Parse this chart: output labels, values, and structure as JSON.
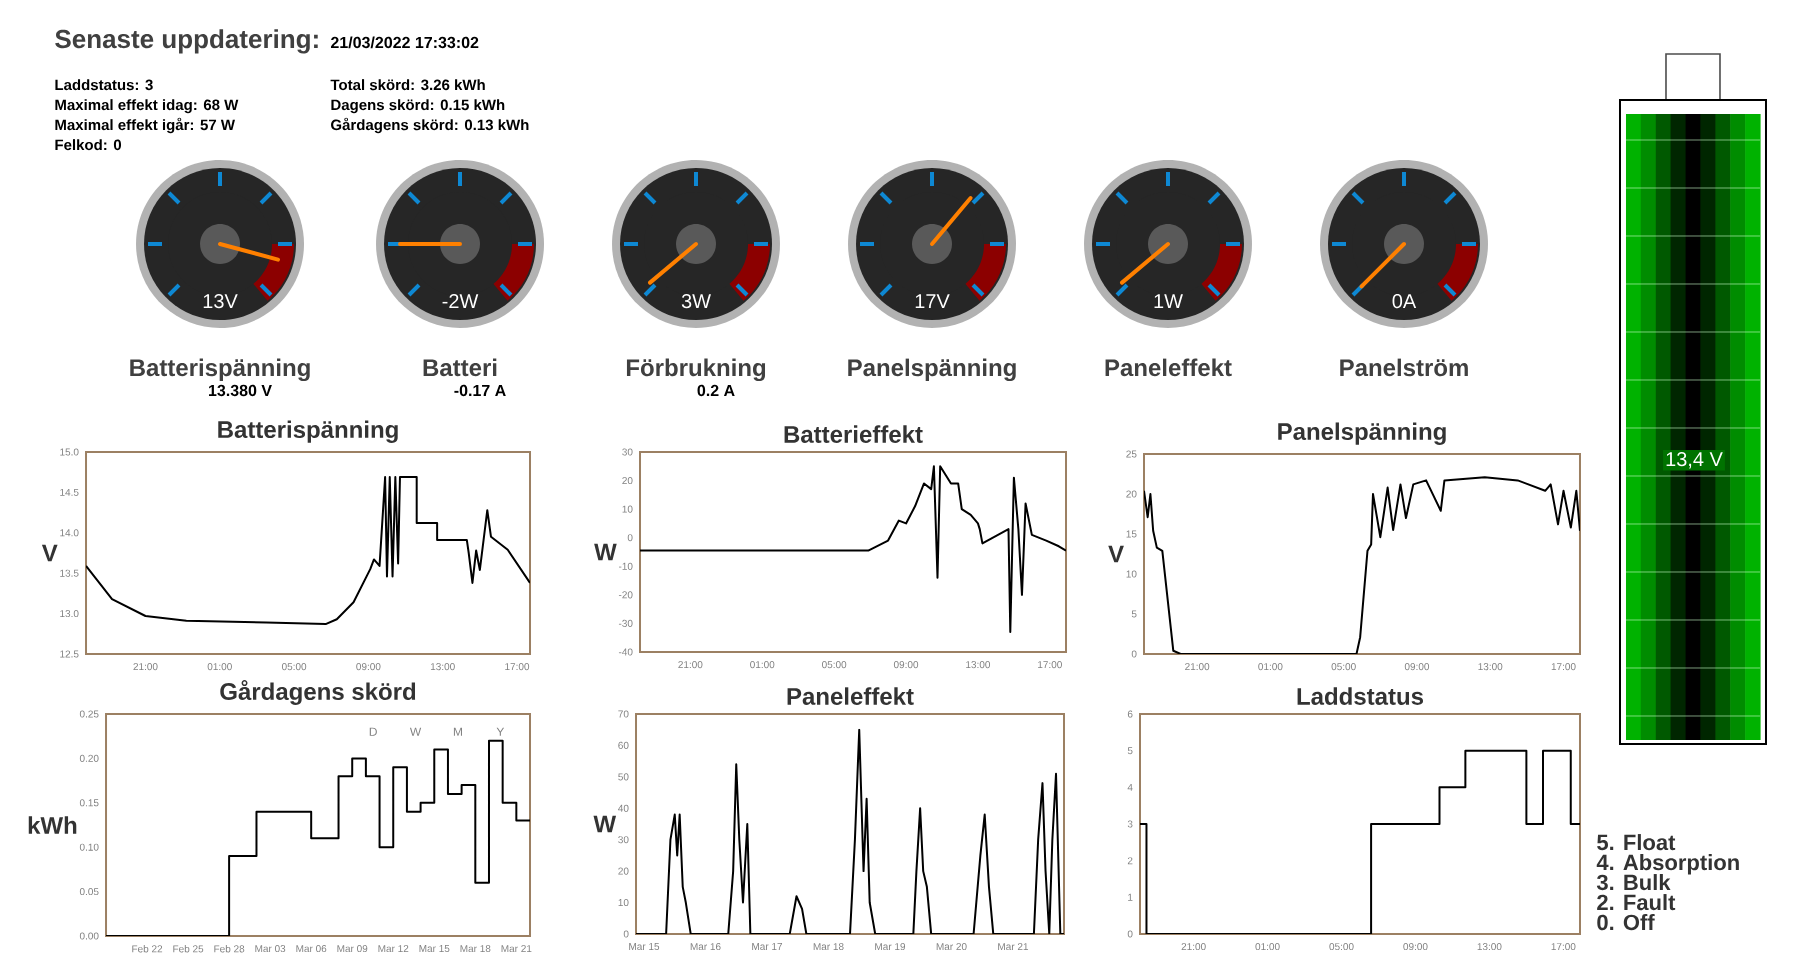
{
  "chart_data": [
    {
      "type": "other",
      "title": "Senaste uppdatering:",
      "subtitle": "21/03/2022 17:33:02",
      "annotations": [
        "Laddstatus: 3",
        "Maximal effekt idag: 68 W",
        "Maximal effekt igår: 57 W",
        "Felkod: 0",
        "Total skörd: 3.26 kWh",
        "Dagens skörd: 0.15 kWh",
        "Gårdagens skörd: 0.13 kWh"
      ]
    },
    {
      "type": "other",
      "title": "Batterispänning",
      "annotations": [
        "13V",
        "13.380 V"
      ]
    },
    {
      "type": "other",
      "title": "Batteri",
      "annotations": [
        "-2W",
        "-0.17 A"
      ]
    },
    {
      "type": "other",
      "title": "Förbrukning",
      "annotations": [
        "3W",
        "0.2 A"
      ]
    },
    {
      "type": "other",
      "title": "Panelspänning",
      "annotations": [
        "17V"
      ]
    },
    {
      "type": "other",
      "title": "Paneleffekt",
      "annotations": [
        "1W"
      ]
    },
    {
      "type": "other",
      "title": "Panelström",
      "annotations": [
        "0A"
      ]
    },
    {
      "type": "other",
      "annotations": [
        "13,4 V"
      ]
    },
    {
      "type": "line",
      "title": "Batterispänning",
      "ylabel": "V",
      "color": "#000000",
      "x": [
        "2022-03-20T17:48",
        "2022-03-20T19:12",
        "2022-03-20T21:00",
        "2022-03-20T23:12",
        "2022-03-21T03:30",
        "2022-03-21T06:42",
        "2022-03-21T07:18",
        "2022-03-21T08:12",
        "2022-03-21T09:06",
        "2022-03-21T09:18",
        "2022-03-21T09:36",
        "2022-03-21T09:54",
        "2022-03-21T10:00",
        "2022-03-21T10:09",
        "2022-03-21T10:18",
        "2022-03-21T10:27",
        "2022-03-21T10:36",
        "2022-03-21T10:42",
        "2022-03-21T11:36",
        "2022-03-21T11:36",
        "2022-03-21T12:42",
        "2022-03-21T12:42",
        "2022-03-21T14:18",
        "2022-03-21T14:24",
        "2022-03-21T14:36",
        "2022-03-21T14:48",
        "2022-03-21T15:00",
        "2022-03-21T15:24",
        "2022-03-21T15:36",
        "2022-03-21T16:30",
        "2022-03-21T17:42"
      ],
      "values": [
        13.59,
        13.18,
        12.97,
        12.91,
        12.89,
        12.87,
        12.93,
        13.14,
        13.55,
        13.67,
        13.59,
        14.69,
        13.46,
        14.69,
        13.46,
        14.69,
        13.62,
        14.69,
        14.69,
        14.12,
        14.12,
        13.91,
        13.91,
        13.75,
        13.38,
        13.78,
        13.54,
        14.28,
        13.95,
        13.79,
        13.38
      ],
      "xlim": [
        "2022-03-20T17:48",
        "2022-03-21T17:42"
      ],
      "ylim": [
        12.5,
        15.0
      ],
      "xticks": [
        {
          "value": "2022-03-20T21:00",
          "label": "21:00"
        },
        {
          "value": "2022-03-21T01:00",
          "label": "01:00"
        },
        {
          "value": "2022-03-21T05:00",
          "label": "05:00"
        },
        {
          "value": "2022-03-21T09:00",
          "label": "09:00"
        },
        {
          "value": "2022-03-21T13:00",
          "label": "13:00"
        },
        {
          "value": "2022-03-21T17:00",
          "label": "17:00"
        }
      ],
      "yticks": [
        {
          "value": 12.5,
          "label": "12.5"
        },
        {
          "value": 13.0,
          "label": "13.0"
        },
        {
          "value": 13.5,
          "label": "13.5"
        },
        {
          "value": 14.0,
          "label": "14.0"
        },
        {
          "value": 14.5,
          "label": "14.5"
        },
        {
          "value": 15.0,
          "label": "15.0"
        }
      ]
    },
    {
      "type": "line",
      "title": "Batterieffekt",
      "ylabel": "W",
      "color": "#000000",
      "x": [
        "2022-03-20T18:12",
        "2022-03-21T06:54",
        "2022-03-21T08:00",
        "2022-03-21T08:36",
        "2022-03-21T09:00",
        "2022-03-21T09:30",
        "2022-03-21T10:00",
        "2022-03-21T10:24",
        "2022-03-21T10:33",
        "2022-03-21T10:45",
        "2022-03-21T10:54",
        "2022-03-21T11:06",
        "2022-03-21T11:30",
        "2022-03-21T11:54",
        "2022-03-21T12:06",
        "2022-03-21T12:36",
        "2022-03-21T13:00",
        "2022-03-21T13:06",
        "2022-03-21T13:15",
        "2022-03-21T14:42",
        "2022-03-21T14:48",
        "2022-03-21T15:00",
        "2022-03-21T15:15",
        "2022-03-21T15:27",
        "2022-03-21T15:39",
        "2022-03-21T16:00",
        "2022-03-21T16:48",
        "2022-03-21T17:30",
        "2022-03-21T17:54"
      ],
      "values": [
        -4.5,
        -4.5,
        -1.0,
        6,
        5,
        11,
        19,
        17,
        25,
        -14,
        25,
        23,
        19,
        19,
        10,
        8,
        5,
        3,
        -2,
        3,
        -33,
        21,
        3,
        -20,
        12,
        1,
        -1,
        -3,
        -4.5
      ],
      "xlim": [
        "2022-03-20T18:12",
        "2022-03-21T17:54"
      ],
      "ylim": [
        -40,
        30
      ],
      "xticks": [
        {
          "value": "2022-03-20T21:00",
          "label": "21:00"
        },
        {
          "value": "2022-03-21T01:00",
          "label": "01:00"
        },
        {
          "value": "2022-03-21T05:00",
          "label": "05:00"
        },
        {
          "value": "2022-03-21T09:00",
          "label": "09:00"
        },
        {
          "value": "2022-03-21T13:00",
          "label": "13:00"
        },
        {
          "value": "2022-03-21T17:00",
          "label": "17:00"
        }
      ],
      "yticks": [
        -40,
        -30,
        -20,
        -10,
        0,
        10,
        20,
        30
      ]
    },
    {
      "type": "line",
      "title": "Panelspänning",
      "ylabel": "V",
      "color": "#000000",
      "x": [
        "2022-03-20T18:06",
        "2022-03-20T18:18",
        "2022-03-20T18:27",
        "2022-03-20T18:36",
        "2022-03-20T18:48",
        "2022-03-20T19:06",
        "2022-03-20T19:42",
        "2022-03-20T20:06",
        "2022-03-21T05:42",
        "2022-03-21T05:54",
        "2022-03-21T06:18",
        "2022-03-21T06:30",
        "2022-03-21T06:36",
        "2022-03-21T07:00",
        "2022-03-21T07:24",
        "2022-03-21T07:42",
        "2022-03-21T08:06",
        "2022-03-21T08:24",
        "2022-03-21T08:48",
        "2022-03-21T09:30",
        "2022-03-21T10:18",
        "2022-03-21T10:30",
        "2022-03-21T12:42",
        "2022-03-21T14:30",
        "2022-03-21T16:00",
        "2022-03-21T16:18",
        "2022-03-21T16:42",
        "2022-03-21T17:00",
        "2022-03-21T17:24",
        "2022-03-21T17:42",
        "2022-03-21T17:54"
      ],
      "values": [
        20.4,
        17.1,
        20,
        15.4,
        13.3,
        12.9,
        0.4,
        0,
        0,
        2.1,
        12.9,
        13.7,
        20,
        14.6,
        20.8,
        15.5,
        21.2,
        17,
        21.2,
        21.7,
        17.9,
        21.7,
        22.1,
        21.7,
        20.4,
        21.2,
        16.2,
        20.4,
        15.8,
        20.4,
        15.4
      ],
      "xlim": [
        "2022-03-20T18:06",
        "2022-03-21T17:54"
      ],
      "ylim": [
        0,
        25
      ],
      "xticks": [
        {
          "value": "2022-03-20T21:00",
          "label": "21:00"
        },
        {
          "value": "2022-03-21T01:00",
          "label": "01:00"
        },
        {
          "value": "2022-03-21T05:00",
          "label": "05:00"
        },
        {
          "value": "2022-03-21T09:00",
          "label": "09:00"
        },
        {
          "value": "2022-03-21T13:00",
          "label": "13:00"
        },
        {
          "value": "2022-03-21T17:00",
          "label": "17:00"
        }
      ],
      "yticks": [
        0,
        5,
        10,
        15,
        20,
        25
      ]
    },
    {
      "type": "step",
      "title": "Gårdagens skörd",
      "ylabel": "kWh",
      "color": "#000000",
      "x": [
        "2022-02-19",
        "2022-02-28",
        "2022-03-02",
        "2022-03-06",
        "2022-03-08",
        "2022-03-09",
        "2022-03-10",
        "2022-03-11",
        "2022-03-12",
        "2022-03-13",
        "2022-03-14",
        "2022-03-15",
        "2022-03-16",
        "2022-03-17",
        "2022-03-18",
        "2022-03-19",
        "2022-03-20",
        "2022-03-21",
        "2022-03-22"
      ],
      "values": [
        0,
        0.09,
        0.14,
        0.11,
        0.18,
        0.2,
        0.18,
        0.1,
        0.19,
        0.14,
        0.15,
        0.21,
        0.16,
        0.17,
        0.06,
        0.22,
        0.15,
        0.13,
        0.13
      ],
      "xlim": [
        "2022-02-19",
        "2022-03-22"
      ],
      "ylim": [
        0,
        0.25
      ],
      "xticks": [
        {
          "value": "2022-02-22",
          "label": "Feb 22"
        },
        {
          "value": "2022-02-25",
          "label": "Feb 25"
        },
        {
          "value": "2022-02-28",
          "label": "Feb 28"
        },
        {
          "value": "2022-03-03",
          "label": "Mar 03"
        },
        {
          "value": "2022-03-06",
          "label": "Mar 06"
        },
        {
          "value": "2022-03-09",
          "label": "Mar 09"
        },
        {
          "value": "2022-03-12",
          "label": "Mar 12"
        },
        {
          "value": "2022-03-15",
          "label": "Mar 15"
        },
        {
          "value": "2022-03-18",
          "label": "Mar 18"
        },
        {
          "value": "2022-03-21",
          "label": "Mar 21"
        }
      ],
      "yticks": [
        {
          "value": 0,
          "label": "0.00"
        },
        {
          "value": 0.05,
          "label": "0.05"
        },
        {
          "value": 0.1,
          "label": "0.10"
        },
        {
          "value": 0.15,
          "label": "0.15"
        },
        {
          "value": 0.2,
          "label": "0.20"
        },
        {
          "value": 0.25,
          "label": "0.25"
        }
      ],
      "annotations": [
        "D",
        "W",
        "M",
        "Y"
      ]
    },
    {
      "type": "line",
      "title": "Paneleffekt",
      "ylabel": "W",
      "color": "#000000",
      "x": [
        "2022-03-14T20:53",
        "2022-03-15T08:38",
        "2022-03-15T10:19",
        "2022-03-15T12:00",
        "2022-03-15T12:58",
        "2022-03-15T13:55",
        "2022-03-15T15:07",
        "2022-03-15T16:19",
        "2022-03-15T18:14",
        "2022-03-16T08:53",
        "2022-03-16T10:48",
        "2022-03-16T12:00",
        "2022-03-16T13:12",
        "2022-03-16T14:38",
        "2022-03-16T16:19",
        "2022-03-16T17:31",
        "2022-03-17T08:53",
        "2022-03-17T11:31",
        "2022-03-17T13:41",
        "2022-03-17T15:22",
        "2022-03-18T08:24",
        "2022-03-18T10:19",
        "2022-03-18T12:00",
        "2022-03-18T13:41",
        "2022-03-18T14:53",
        "2022-03-18T16:05",
        "2022-03-18T18:14",
        "2022-03-19T09:07",
        "2022-03-19T10:19",
        "2022-03-19T11:46",
        "2022-03-19T12:58",
        "2022-03-19T14:24",
        "2022-03-19T16:05",
        "2022-03-20T08:38",
        "2022-03-20T11:17",
        "2022-03-20T12:58",
        "2022-03-20T14:38",
        "2022-03-20T16:19",
        "2022-03-21T08:10",
        "2022-03-21T09:50",
        "2022-03-21T11:31",
        "2022-03-21T12:43",
        "2022-03-21T14:10",
        "2022-03-21T15:22",
        "2022-03-21T16:48",
        "2022-03-21T18:29",
        "2022-03-21T19:55"
      ],
      "values": [
        0,
        0,
        30,
        38,
        25,
        38,
        15,
        10,
        0,
        0,
        20,
        54,
        30,
        10,
        35,
        0,
        0,
        12,
        8,
        0,
        0,
        30,
        65,
        20,
        43,
        10,
        0,
        0,
        20,
        40,
        20,
        15,
        0,
        0,
        25,
        38,
        15,
        0,
        0,
        30,
        48,
        20,
        0,
        30,
        51,
        0,
        0
      ],
      "xlim": [
        "2022-03-14T20:53",
        "2022-03-21T19:55"
      ],
      "ylim": [
        0,
        70
      ],
      "xticks": [
        {
          "value": "2022-03-15",
          "label": "Mar 15"
        },
        {
          "value": "2022-03-16",
          "label": "Mar 16"
        },
        {
          "value": "2022-03-17",
          "label": "Mar 17"
        },
        {
          "value": "2022-03-18",
          "label": "Mar 18"
        },
        {
          "value": "2022-03-19",
          "label": "Mar 19"
        },
        {
          "value": "2022-03-20",
          "label": "Mar 20"
        },
        {
          "value": "2022-03-21",
          "label": "Mar 21"
        }
      ],
      "yticks": [
        0,
        10,
        20,
        30,
        40,
        50,
        60,
        70
      ]
    },
    {
      "type": "step",
      "title": "Laddstatus",
      "color": "#000000",
      "x": [
        "2022-03-20T18:06",
        "2022-03-20T18:27",
        "2022-03-21T06:36",
        "2022-03-21T10:18",
        "2022-03-21T11:42",
        "2022-03-21T15:00",
        "2022-03-21T15:54",
        "2022-03-21T17:24",
        "2022-03-21T17:54"
      ],
      "values": [
        3,
        0,
        3,
        4,
        5,
        3,
        5,
        3,
        3
      ],
      "xlim": [
        "2022-03-20T18:06",
        "2022-03-21T17:54"
      ],
      "ylim": [
        0,
        6
      ],
      "xticks": [
        {
          "value": "2022-03-20T21:00",
          "label": "21:00"
        },
        {
          "value": "2022-03-21T01:00",
          "label": "01:00"
        },
        {
          "value": "2022-03-21T05:00",
          "label": "05:00"
        },
        {
          "value": "2022-03-21T09:00",
          "label": "09:00"
        },
        {
          "value": "2022-03-21T13:00",
          "label": "13:00"
        },
        {
          "value": "2022-03-21T17:00",
          "label": "17:00"
        }
      ],
      "yticks": [
        0,
        1,
        2,
        3,
        4,
        5,
        6
      ],
      "annotations": [
        "5. Float",
        "4. Absorption",
        "3. Bulk",
        "2. Fault",
        "0. Off"
      ]
    }
  ]
}
